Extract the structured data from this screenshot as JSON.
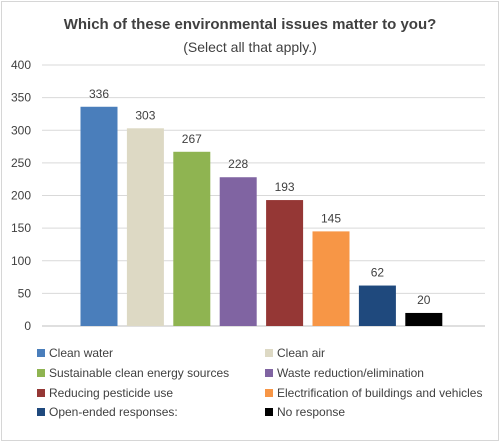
{
  "chart_data": {
    "type": "bar",
    "title": "Which of these environmental issues matter to you?",
    "subtitle": "(Select all that apply.)",
    "xlabel": "",
    "ylabel": "",
    "ylim": [
      0,
      400
    ],
    "yticks": [
      0,
      50,
      100,
      150,
      200,
      250,
      300,
      350,
      400
    ],
    "grid": true,
    "legend_position": "bottom",
    "categories": [
      "Clean water",
      "Clean air",
      "Sustainable clean energy sources",
      "Waste reduction/elimination",
      "Reducing pesticide use",
      "Electrification of buildings and vehicles",
      "Open-ended responses:",
      "No response"
    ],
    "values": [
      336,
      303,
      267,
      228,
      193,
      145,
      62,
      20
    ],
    "colors": [
      "#4a7ebb",
      "#ddd9c4",
      "#8fb451",
      "#8064a2",
      "#953735",
      "#f79646",
      "#1f497d",
      "#000000"
    ]
  }
}
